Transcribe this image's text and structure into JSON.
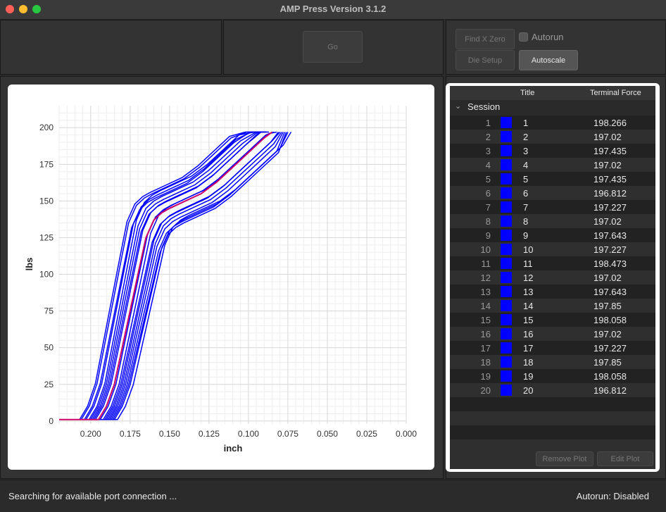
{
  "window": {
    "title": "AMP Press Version 3.1.2"
  },
  "toolbar": {
    "go_label": "Go",
    "find_x_zero_label": "Find X Zero",
    "die_setup_label": "Die Setup",
    "autoscale_label": "Autoscale",
    "autorun_label": "Autorun"
  },
  "chart_data": {
    "type": "line",
    "xlabel": "inch",
    "ylabel": "lbs",
    "xlim": [
      0.22,
      0.0
    ],
    "ylim": [
      -2,
      215
    ],
    "x_ticks": [
      "0.200",
      "0.175",
      "0.150",
      "0.125",
      "0.100",
      "0.075",
      "0.050",
      "0.025",
      "0.000"
    ],
    "y_ticks": [
      "0",
      "25",
      "50",
      "75",
      "100",
      "125",
      "150",
      "175",
      "200"
    ],
    "grid": true,
    "series_color": "#0000ff",
    "average_color": "#cc0066",
    "base_curve": {
      "x": [
        0.22,
        0.195,
        0.19,
        0.185,
        0.18,
        0.175,
        0.17,
        0.165,
        0.16,
        0.155,
        0.15,
        0.14,
        0.13,
        0.12,
        0.11,
        0.1,
        0.09,
        0.085
      ],
      "y": [
        1,
        1,
        10,
        25,
        50,
        75,
        100,
        125,
        137,
        142,
        145,
        150,
        155,
        163,
        173,
        183,
        193,
        197
      ]
    },
    "series_offsets_x": [
      0.0,
      -0.004,
      0.006,
      -0.008,
      0.01,
      0.003,
      -0.011,
      0.008,
      -0.002,
      0.012,
      -0.006,
      0.005,
      -0.009,
      0.009,
      0.001,
      -0.005,
      0.007,
      -0.012,
      0.004,
      -0.003
    ],
    "series_offsets_y": [
      0,
      6,
      -4,
      9,
      -7,
      3,
      10,
      -9,
      5,
      -5,
      12,
      -2,
      7,
      -10,
      2,
      8,
      -6,
      11,
      -3,
      4
    ]
  },
  "table": {
    "col_title": "Title",
    "col_force": "Terminal Force",
    "session_label": "Session",
    "rows": [
      {
        "idx": "1",
        "title": "1",
        "force": "198.266"
      },
      {
        "idx": "2",
        "title": "2",
        "force": "197.02"
      },
      {
        "idx": "3",
        "title": "3",
        "force": "197.435"
      },
      {
        "idx": "4",
        "title": "4",
        "force": "197.02"
      },
      {
        "idx": "5",
        "title": "5",
        "force": "197.435"
      },
      {
        "idx": "6",
        "title": "6",
        "force": "196.812"
      },
      {
        "idx": "7",
        "title": "7",
        "force": "197.227"
      },
      {
        "idx": "8",
        "title": "8",
        "force": "197.02"
      },
      {
        "idx": "9",
        "title": "9",
        "force": "197.643"
      },
      {
        "idx": "10",
        "title": "10",
        "force": "197.227"
      },
      {
        "idx": "11",
        "title": "11",
        "force": "198.473"
      },
      {
        "idx": "12",
        "title": "12",
        "force": "197.02"
      },
      {
        "idx": "13",
        "title": "13",
        "force": "197.643"
      },
      {
        "idx": "14",
        "title": "14",
        "force": "197.85"
      },
      {
        "idx": "15",
        "title": "15",
        "force": "198.058"
      },
      {
        "idx": "16",
        "title": "16",
        "force": "197.02"
      },
      {
        "idx": "17",
        "title": "17",
        "force": "197.227"
      },
      {
        "idx": "18",
        "title": "18",
        "force": "197.85"
      },
      {
        "idx": "19",
        "title": "19",
        "force": "198.058"
      },
      {
        "idx": "20",
        "title": "20",
        "force": "196.812"
      }
    ],
    "remove_plot_label": "Remove Plot",
    "edit_plot_label": "Edit Plot"
  },
  "status": {
    "left": "Searching for available port connection ...",
    "right": "Autorun: Disabled"
  }
}
